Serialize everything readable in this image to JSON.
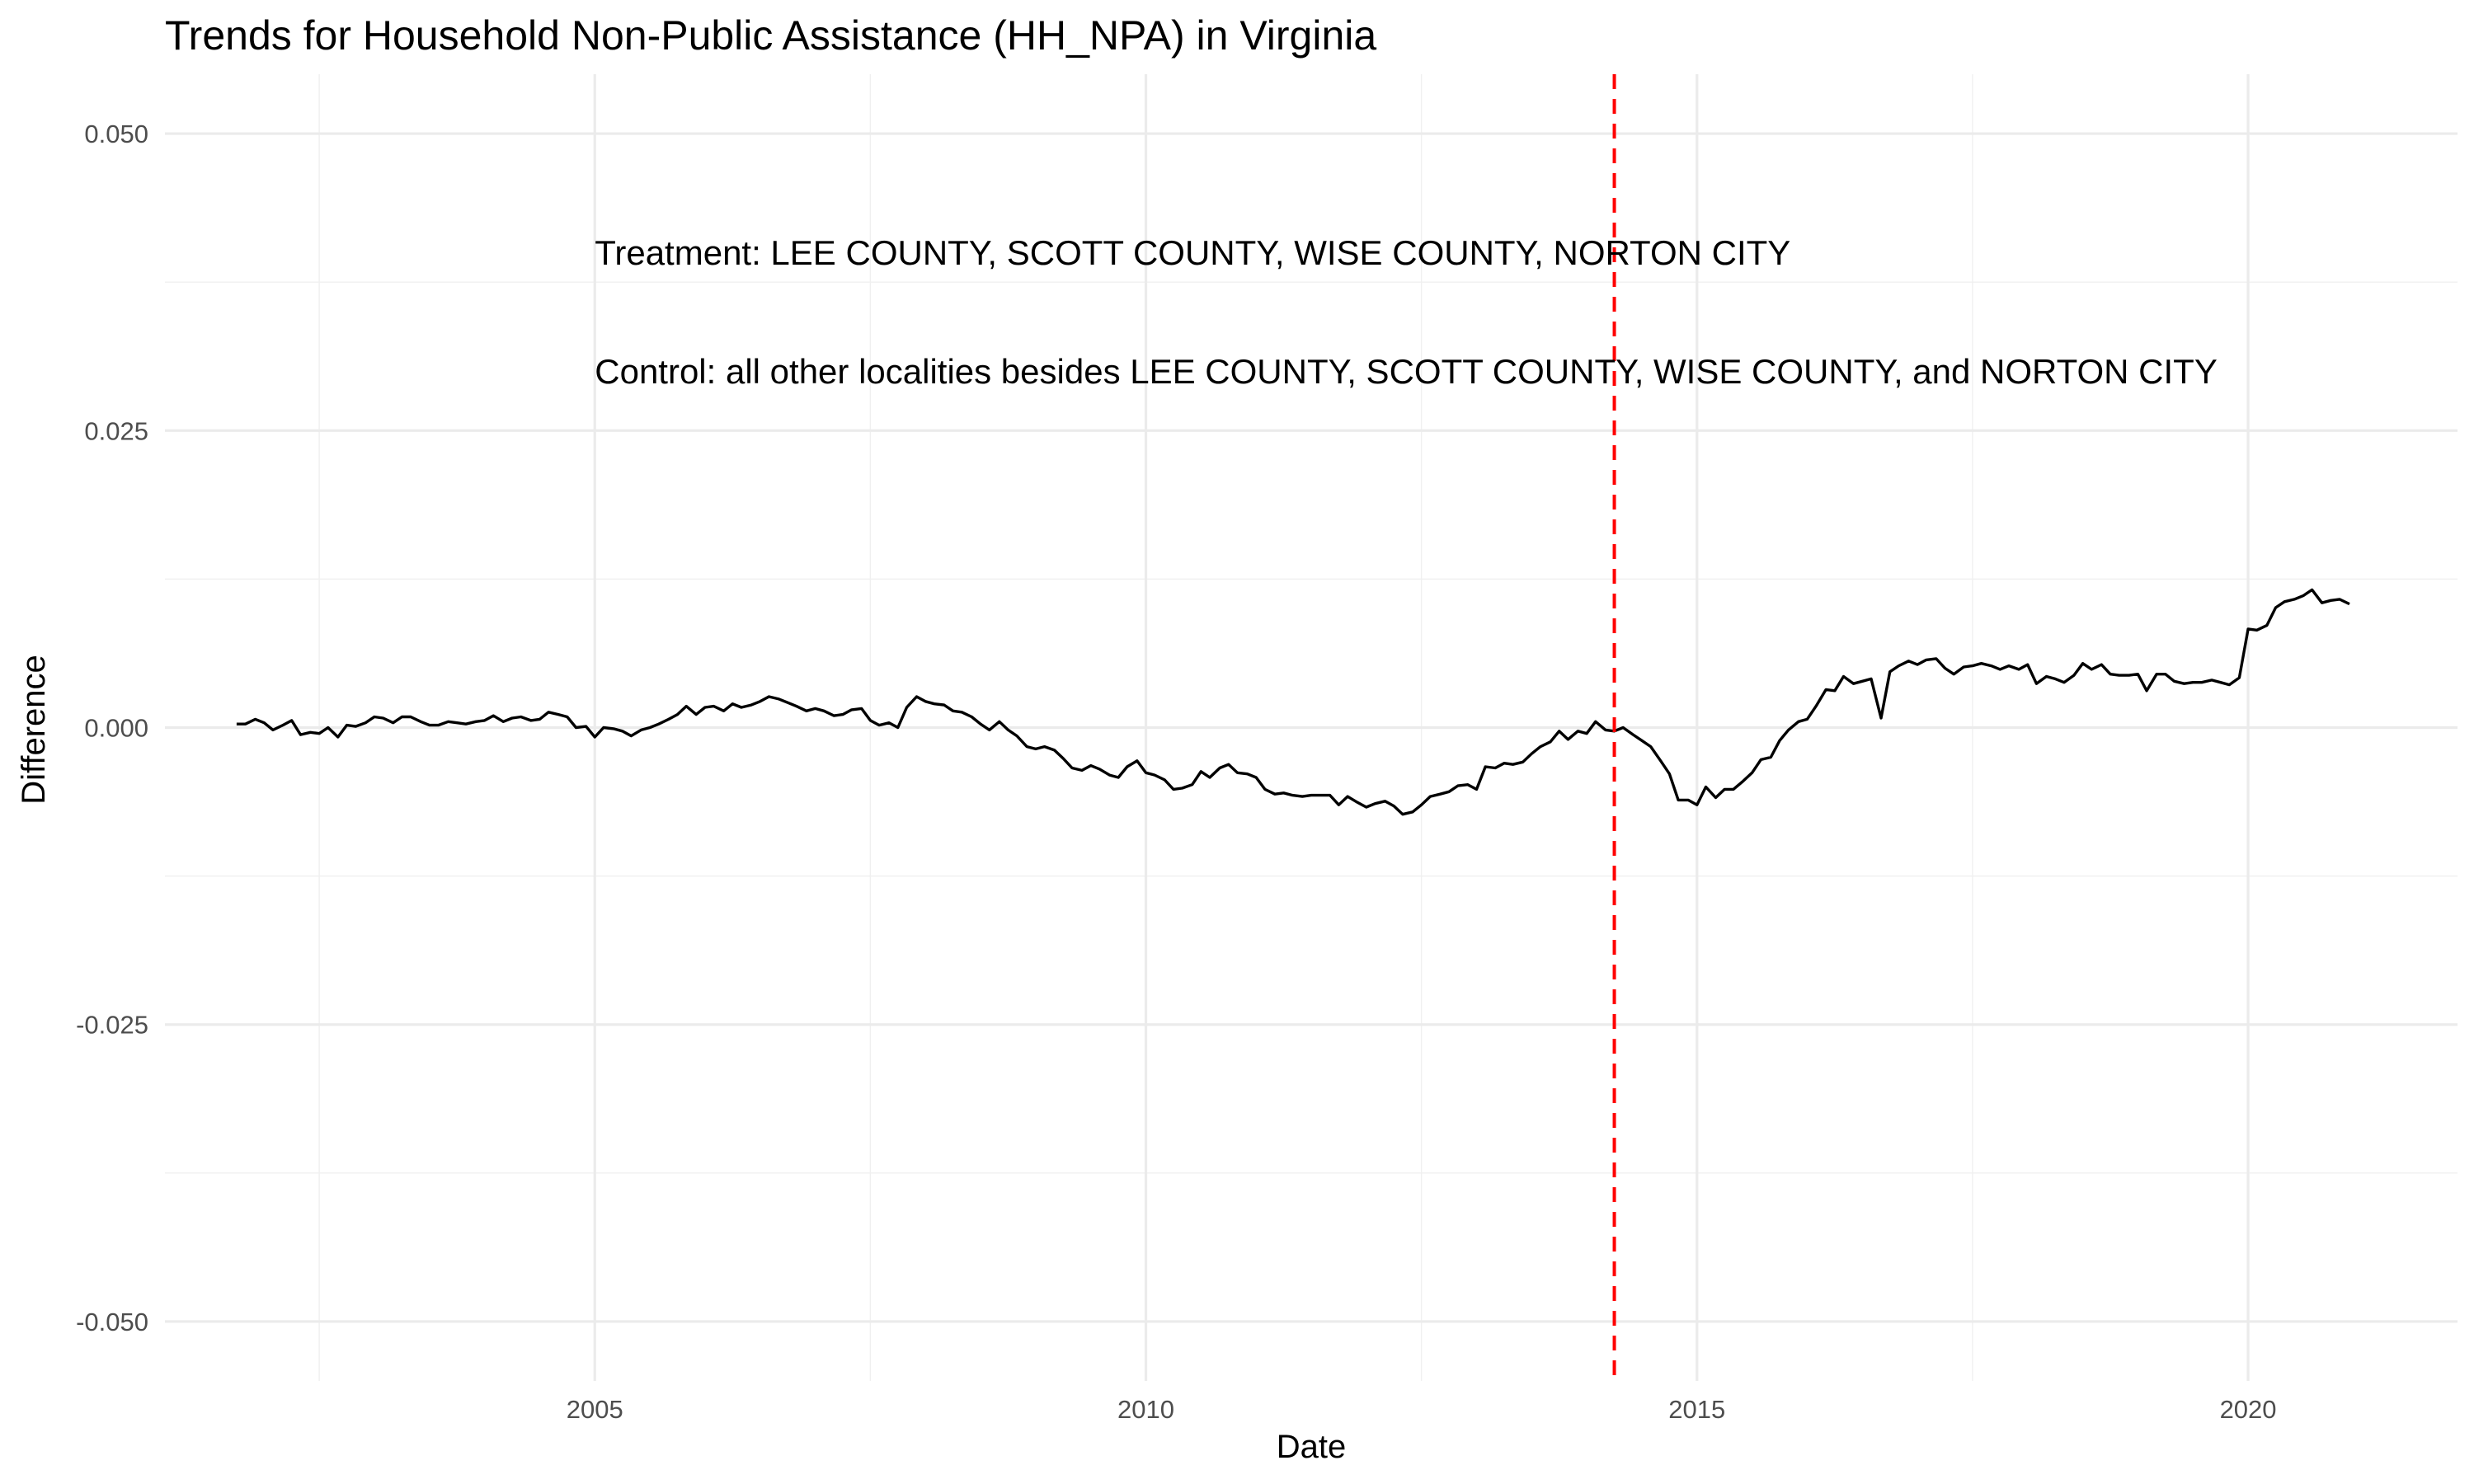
{
  "chart_data": {
    "type": "line",
    "title": "Trends for Household Non-Public Assistance (HH_NPA) in Virginia",
    "xlabel": "Date",
    "ylabel": "Difference",
    "xlim": [
      2001.1,
      2021.9
    ],
    "ylim": [
      -0.055,
      0.055
    ],
    "x_ticks": [
      2005,
      2010,
      2015,
      2020
    ],
    "x_tick_labels": [
      "2005",
      "2010",
      "2015",
      "2020"
    ],
    "y_ticks": [
      0.05,
      0.025,
      0.0,
      -0.025,
      -0.05
    ],
    "y_tick_labels": [
      "0.050",
      "0.025",
      "0.000",
      "-0.025",
      "-0.050"
    ],
    "grid": true,
    "legend": "none",
    "line_color": "#000000",
    "vline": {
      "x": 2014.25,
      "color": "#ff0000",
      "style": "dashed"
    },
    "annotations": [
      {
        "text": "Treatment: LEE COUNTY, SCOTT COUNTY, WISE COUNTY, NORTON CITY",
        "x": 2005.0,
        "y": 0.04
      },
      {
        "text": "Control: all other localities besides LEE COUNTY, SCOTT COUNTY, WISE COUNTY, and NORTON CITY",
        "x": 2005.0,
        "y": 0.03
      }
    ],
    "series": [
      {
        "x": [
          2001.75,
          2001.83,
          2001.92,
          2002.0,
          2002.08,
          2002.17,
          2002.25,
          2002.33,
          2002.42,
          2002.5,
          2002.58,
          2002.67,
          2002.75,
          2002.83,
          2002.92,
          2003.0,
          2003.08,
          2003.17,
          2003.25,
          2003.33,
          2003.42,
          2003.5,
          2003.58,
          2003.67,
          2003.75,
          2003.83,
          2003.92,
          2004.0,
          2004.08,
          2004.17,
          2004.25,
          2004.33,
          2004.42,
          2004.5,
          2004.58,
          2004.67,
          2004.75,
          2004.83,
          2004.92,
          2005.0,
          2005.08,
          2005.17,
          2005.25,
          2005.33,
          2005.42,
          2005.5,
          2005.58,
          2005.67,
          2005.75,
          2005.83,
          2005.92,
          2006.0,
          2006.08,
          2006.17,
          2006.25,
          2006.33,
          2006.42,
          2006.5,
          2006.58,
          2006.67,
          2006.75,
          2006.83,
          2006.92,
          2007.0,
          2007.08,
          2007.17,
          2007.25,
          2007.33,
          2007.42,
          2007.5,
          2007.58,
          2007.67,
          2007.75,
          2007.83,
          2007.92,
          2008.0,
          2008.08,
          2008.17,
          2008.25,
          2008.33,
          2008.42,
          2008.5,
          2008.58,
          2008.67,
          2008.75,
          2008.83,
          2008.92,
          2009.0,
          2009.08,
          2009.17,
          2009.25,
          2009.33,
          2009.42,
          2009.5,
          2009.58,
          2009.67,
          2009.75,
          2009.83,
          2009.92,
          2010.0,
          2010.08,
          2010.17,
          2010.25,
          2010.33,
          2010.42,
          2010.5,
          2010.58,
          2010.67,
          2010.75,
          2010.83,
          2010.92,
          2011.0,
          2011.08,
          2011.17,
          2011.25,
          2011.33,
          2011.42,
          2011.5,
          2011.58,
          2011.67,
          2011.75,
          2011.83,
          2011.92,
          2012.0,
          2012.08,
          2012.17,
          2012.25,
          2012.33,
          2012.42,
          2012.5,
          2012.58,
          2012.67,
          2012.75,
          2012.83,
          2012.92,
          2013.0,
          2013.08,
          2013.17,
          2013.25,
          2013.33,
          2013.42,
          2013.5,
          2013.58,
          2013.67,
          2013.75,
          2013.83,
          2013.92,
          2014.0,
          2014.08,
          2014.17,
          2014.25,
          2014.33,
          2014.42,
          2014.5,
          2014.58,
          2014.67,
          2014.75,
          2014.83,
          2014.92,
          2015.0,
          2015.08,
          2015.17,
          2015.25,
          2015.33,
          2015.42,
          2015.5,
          2015.58,
          2015.67,
          2015.75,
          2015.83,
          2015.92,
          2016.0,
          2016.08,
          2016.17,
          2016.25,
          2016.33,
          2016.42,
          2016.5,
          2016.58,
          2016.67,
          2016.75,
          2016.83,
          2016.92,
          2017.0,
          2017.08,
          2017.17,
          2017.25,
          2017.33,
          2017.42,
          2017.5,
          2017.58,
          2017.67,
          2017.75,
          2017.83,
          2017.92,
          2018.0,
          2018.08,
          2018.17,
          2018.25,
          2018.33,
          2018.42,
          2018.5,
          2018.58,
          2018.67,
          2018.75,
          2018.83,
          2018.92,
          2019.0,
          2019.08,
          2019.17,
          2019.25,
          2019.33,
          2019.42,
          2019.5,
          2019.58,
          2019.67,
          2019.75,
          2019.83,
          2019.92,
          2020.0,
          2020.08,
          2020.17,
          2020.25,
          2020.33,
          2020.42,
          2020.5,
          2020.58,
          2020.67,
          2020.75,
          2020.83,
          2020.92
        ],
        "y": [
          0.0003,
          0.0003,
          0.0007,
          0.0004,
          -0.0002,
          0.0002,
          0.0006,
          -0.0006,
          -0.0004,
          -0.0005,
          0.0,
          -0.0008,
          0.0002,
          0.0001,
          0.0004,
          0.0009,
          0.0008,
          0.0004,
          0.0009,
          0.0009,
          0.0005,
          0.0002,
          0.0002,
          0.0005,
          0.0004,
          0.0003,
          0.0005,
          0.0006,
          0.001,
          0.0005,
          0.0008,
          0.0009,
          0.0006,
          0.0007,
          0.0013,
          0.0011,
          0.0009,
          0.0,
          0.0001,
          -0.0008,
          0.0,
          -0.0001,
          -0.0003,
          -0.0007,
          -0.0002,
          0.0,
          0.0003,
          0.0007,
          0.0011,
          0.0018,
          0.0011,
          0.0017,
          0.0018,
          0.0014,
          0.002,
          0.0017,
          0.0019,
          0.0022,
          0.0026,
          0.0024,
          0.0021,
          0.0018,
          0.0014,
          0.0016,
          0.0014,
          0.001,
          0.0011,
          0.0015,
          0.0016,
          0.0006,
          0.0002,
          0.0004,
          0.0,
          0.0017,
          0.0026,
          0.0022,
          0.002,
          0.0019,
          0.0014,
          0.0013,
          0.0009,
          0.0003,
          -0.0002,
          0.0005,
          -0.0002,
          -0.0007,
          -0.0016,
          -0.0018,
          -0.0016,
          -0.0019,
          -0.0026,
          -0.0034,
          -0.0036,
          -0.0032,
          -0.0035,
          -0.004,
          -0.0042,
          -0.0033,
          -0.0028,
          -0.0038,
          -0.004,
          -0.0044,
          -0.0052,
          -0.0051,
          -0.0048,
          -0.0037,
          -0.0042,
          -0.0034,
          -0.0031,
          -0.0038,
          -0.0039,
          -0.0042,
          -0.0052,
          -0.0056,
          -0.0055,
          -0.0057,
          -0.0058,
          -0.0057,
          -0.0057,
          -0.0057,
          -0.0065,
          -0.0058,
          -0.0063,
          -0.0067,
          -0.0064,
          -0.0062,
          -0.0066,
          -0.0073,
          -0.0071,
          -0.0065,
          -0.0058,
          -0.0056,
          -0.0054,
          -0.0049,
          -0.0048,
          -0.0052,
          -0.0033,
          -0.0034,
          -0.003,
          -0.0031,
          -0.0029,
          -0.0022,
          -0.0016,
          -0.0012,
          -0.0003,
          -0.001,
          -0.0003,
          -0.0005,
          0.0005,
          -0.0002,
          -0.0003,
          0.0,
          -0.0006,
          -0.0011,
          -0.0016,
          -0.0028,
          -0.0039,
          -0.0061,
          -0.0061,
          -0.0065,
          -0.005,
          -0.0059,
          -0.0052,
          -0.0052,
          -0.0045,
          -0.0038,
          -0.0027,
          -0.0025,
          -0.0011,
          -0.0002,
          0.0005,
          0.0007,
          0.0018,
          0.0032,
          0.0031,
          0.0043,
          0.0037,
          0.0039,
          0.0041,
          0.0008,
          0.0047,
          0.0052,
          0.0056,
          0.0053,
          0.0057,
          0.0058,
          0.005,
          0.0045,
          0.0051,
          0.0052,
          0.0054,
          0.0052,
          0.0049,
          0.0052,
          0.0049,
          0.0053,
          0.0037,
          0.0043,
          0.0041,
          0.0038,
          0.0044,
          0.0054,
          0.0049,
          0.0053,
          0.0045,
          0.0044,
          0.0044,
          0.0045,
          0.0031,
          0.0045,
          0.0045,
          0.0039,
          0.0037,
          0.0038,
          0.0038,
          0.004,
          0.0038,
          0.0036,
          0.0042,
          0.0083,
          0.0082,
          0.0086,
          0.0101,
          0.0106,
          0.0108,
          0.0111,
          0.0116,
          0.0105,
          0.0107,
          0.0108,
          0.0104
        ]
      }
    ]
  }
}
